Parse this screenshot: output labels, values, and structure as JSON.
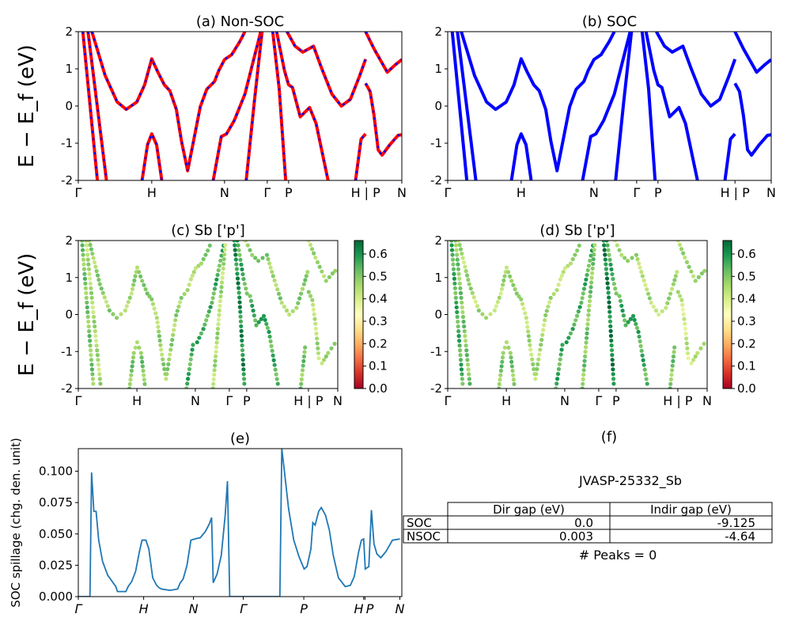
{
  "chart_data": [
    {
      "id": "a",
      "type": "line",
      "title": "(a) Non-SOC",
      "ylabel": "E − E_f (eV)",
      "ylim": [
        -2,
        2
      ],
      "yticks": [
        2,
        1,
        0,
        -1,
        -2
      ],
      "xticks": [
        {
          "label": "Γ",
          "k": 0
        },
        {
          "label": "H",
          "k": 0.227
        },
        {
          "label": "N",
          "k": 0.452
        },
        {
          "label": "Γ",
          "k": 0.584
        },
        {
          "label": "P",
          "k": 0.65
        },
        {
          "label": "H | P",
          "k": 0.888
        },
        {
          "label": "N",
          "k": 1
        }
      ],
      "colors": {
        "line": "#ff0000",
        "dash": "#0000ff"
      },
      "bands": [
        [
          [
            0.014,
            2
          ],
          [
            0.059,
            -2
          ]
        ],
        [
          [
            0.03,
            2
          ],
          [
            0.087,
            -2
          ]
        ],
        [
          [
            0.042,
            2
          ],
          [
            0.083,
            0.82
          ],
          [
            0.12,
            0.11
          ],
          [
            0.148,
            -0.09
          ],
          [
            0.181,
            0.11
          ],
          [
            0.205,
            0.57
          ],
          [
            0.227,
            1.27
          ],
          [
            0.246,
            0.91
          ],
          [
            0.266,
            0.57
          ],
          [
            0.283,
            0.41
          ],
          [
            0.303,
            -0.09
          ],
          [
            0.319,
            -0.95
          ],
          [
            0.338,
            -1.74
          ],
          [
            0.356,
            -0.95
          ],
          [
            0.377,
            -0.02
          ],
          [
            0.397,
            0.45
          ],
          [
            0.421,
            0.66
          ],
          [
            0.434,
            0.95
          ],
          [
            0.452,
            1.25
          ],
          [
            0.474,
            1.38
          ],
          [
            0.499,
            1.73
          ],
          [
            0.515,
            2
          ]
        ],
        [
          [
            0.197,
            -2
          ],
          [
            0.214,
            -1.04
          ],
          [
            0.227,
            -0.75
          ],
          [
            0.242,
            -1.04
          ],
          [
            0.258,
            -2
          ]
        ],
        [
          [
            0.417,
            -2
          ],
          [
            0.442,
            -0.82
          ],
          [
            0.458,
            -0.75
          ],
          [
            0.482,
            -0.39
          ],
          [
            0.515,
            0.32
          ],
          [
            0.544,
            1.32
          ],
          [
            0.564,
            2
          ]
        ],
        [
          [
            0.519,
            -2
          ],
          [
            0.544,
            0.11
          ],
          [
            0.568,
            2
          ]
        ],
        [
          [
            0.601,
            2
          ],
          [
            0.621,
            0.46
          ],
          [
            0.641,
            -2
          ]
        ],
        [
          [
            0.613,
            2
          ],
          [
            0.637,
            0.96
          ],
          [
            0.65,
            0.57
          ],
          [
            0.662,
            0.5
          ],
          [
            0.686,
            -0.29
          ],
          [
            0.715,
            -0.04
          ],
          [
            0.735,
            -0.47
          ],
          [
            0.772,
            -2
          ]
        ],
        [
          [
            0.645,
            2
          ],
          [
            0.67,
            1.61
          ],
          [
            0.694,
            1.45
          ],
          [
            0.727,
            1.61
          ],
          [
            0.751,
            1.04
          ],
          [
            0.784,
            0.32
          ],
          [
            0.813,
            0.0
          ],
          [
            0.841,
            0.18
          ],
          [
            0.87,
            0.82
          ],
          [
            0.888,
            1.26
          ]
        ],
        [
          [
            0.857,
            -2
          ],
          [
            0.874,
            -0.89
          ],
          [
            0.888,
            -0.75
          ]
        ],
        [
          [
            0.888,
            2
          ],
          [
            0.914,
            1.54
          ],
          [
            0.955,
            0.91
          ],
          [
            0.98,
            1.11
          ],
          [
            1,
            1.25
          ]
        ],
        [
          [
            0.888,
            0.61
          ],
          [
            0.902,
            0.39
          ],
          [
            0.914,
            -0.25
          ],
          [
            0.927,
            -1.18
          ],
          [
            0.939,
            -1.32
          ],
          [
            0.963,
            -1.04
          ],
          [
            0.988,
            -0.79
          ],
          [
            1,
            -0.77
          ]
        ]
      ]
    },
    {
      "id": "b",
      "type": "line",
      "title": "(b) SOC",
      "ylim": [
        -2,
        2
      ],
      "yticks": [
        2,
        1,
        0,
        -1,
        -2
      ],
      "xticks": [
        {
          "label": "Γ",
          "k": 0
        },
        {
          "label": "H",
          "k": 0.227
        },
        {
          "label": "N",
          "k": 0.452
        },
        {
          "label": "Γ",
          "k": 0.584
        },
        {
          "label": "P",
          "k": 0.65
        },
        {
          "label": "H | P",
          "k": 0.888
        },
        {
          "label": "N",
          "k": 1
        }
      ],
      "colors": {
        "line": "#0000ff"
      },
      "bands": [
        [
          [
            0.014,
            2
          ],
          [
            0.059,
            -2
          ]
        ],
        [
          [
            0.03,
            2
          ],
          [
            0.087,
            -2
          ]
        ],
        [
          [
            0.042,
            2
          ],
          [
            0.083,
            0.82
          ],
          [
            0.12,
            0.11
          ],
          [
            0.148,
            -0.09
          ],
          [
            0.181,
            0.11
          ],
          [
            0.205,
            0.57
          ],
          [
            0.227,
            1.27
          ],
          [
            0.246,
            0.91
          ],
          [
            0.266,
            0.57
          ],
          [
            0.283,
            0.41
          ],
          [
            0.303,
            -0.09
          ],
          [
            0.319,
            -0.95
          ],
          [
            0.338,
            -1.74
          ],
          [
            0.356,
            -0.95
          ],
          [
            0.377,
            -0.02
          ],
          [
            0.397,
            0.45
          ],
          [
            0.421,
            0.66
          ],
          [
            0.434,
            0.95
          ],
          [
            0.452,
            1.25
          ],
          [
            0.474,
            1.38
          ],
          [
            0.499,
            1.73
          ],
          [
            0.515,
            2
          ]
        ],
        [
          [
            0.197,
            -2
          ],
          [
            0.214,
            -1.04
          ],
          [
            0.227,
            -0.75
          ],
          [
            0.242,
            -1.04
          ],
          [
            0.258,
            -2
          ]
        ],
        [
          [
            0.417,
            -2
          ],
          [
            0.442,
            -0.82
          ],
          [
            0.458,
            -0.75
          ],
          [
            0.482,
            -0.39
          ],
          [
            0.515,
            0.32
          ],
          [
            0.544,
            1.32
          ],
          [
            0.564,
            2
          ]
        ],
        [
          [
            0.519,
            -2
          ],
          [
            0.544,
            0.11
          ],
          [
            0.568,
            2
          ]
        ],
        [
          [
            0.601,
            2
          ],
          [
            0.621,
            0.46
          ],
          [
            0.641,
            -2
          ]
        ],
        [
          [
            0.613,
            2
          ],
          [
            0.637,
            0.96
          ],
          [
            0.65,
            0.57
          ],
          [
            0.662,
            0.5
          ],
          [
            0.686,
            -0.29
          ],
          [
            0.715,
            -0.04
          ],
          [
            0.735,
            -0.47
          ],
          [
            0.772,
            -2
          ]
        ],
        [
          [
            0.645,
            2
          ],
          [
            0.67,
            1.61
          ],
          [
            0.694,
            1.45
          ],
          [
            0.727,
            1.61
          ],
          [
            0.751,
            1.04
          ],
          [
            0.784,
            0.32
          ],
          [
            0.813,
            0.0
          ],
          [
            0.841,
            0.18
          ],
          [
            0.87,
            0.82
          ],
          [
            0.888,
            1.26
          ]
        ],
        [
          [
            0.857,
            -2
          ],
          [
            0.874,
            -0.89
          ],
          [
            0.888,
            -0.75
          ]
        ],
        [
          [
            0.888,
            2
          ],
          [
            0.914,
            1.54
          ],
          [
            0.955,
            0.91
          ],
          [
            0.98,
            1.11
          ],
          [
            1,
            1.25
          ]
        ],
        [
          [
            0.888,
            0.61
          ],
          [
            0.902,
            0.39
          ],
          [
            0.914,
            -0.25
          ],
          [
            0.927,
            -1.18
          ],
          [
            0.939,
            -1.32
          ],
          [
            0.963,
            -1.04
          ],
          [
            0.988,
            -0.79
          ],
          [
            1,
            -0.77
          ]
        ]
      ]
    },
    {
      "id": "c",
      "type": "scatter",
      "title": "(c)  Sb ['p']",
      "ylabel": "E − E_f (eV)",
      "ylim": [
        -2,
        2
      ],
      "yticks": [
        2,
        1,
        0,
        -1,
        -2
      ],
      "xticks": [
        {
          "label": "Γ",
          "k": 0
        },
        {
          "label": "H",
          "k": 0.226
        },
        {
          "label": "N",
          "k": 0.451
        },
        {
          "label": "Γ",
          "k": 0.582
        },
        {
          "label": "P",
          "k": 0.649
        },
        {
          "label": "H | P",
          "k": 0.887
        },
        {
          "label": "N",
          "k": 1
        }
      ],
      "colorbar": {
        "colormap": "RdYlGn",
        "range": [
          0,
          0.66
        ],
        "ticks": [
          0.0,
          0.1,
          0.2,
          0.3,
          0.4,
          0.5,
          0.6
        ]
      },
      "band_weights": [
        0.5,
        0.45,
        0.47,
        0.5,
        0.55,
        0.45,
        0.6,
        0.55,
        0.48,
        0.5,
        0.45,
        0.45
      ]
    },
    {
      "id": "d",
      "type": "scatter",
      "title": "(d) Sb ['p']",
      "ylim": [
        -2,
        2
      ],
      "yticks": [
        2,
        1,
        0,
        -1,
        -2
      ],
      "xticks": [
        {
          "label": "Γ",
          "k": 0
        },
        {
          "label": "H",
          "k": 0.226
        },
        {
          "label": "N",
          "k": 0.451
        },
        {
          "label": "Γ",
          "k": 0.582
        },
        {
          "label": "P",
          "k": 0.649
        },
        {
          "label": "H | P",
          "k": 0.887
        },
        {
          "label": "N",
          "k": 1
        }
      ],
      "colorbar": {
        "colormap": "RdYlGn",
        "range": [
          0,
          0.66
        ],
        "ticks": [
          0.0,
          0.1,
          0.2,
          0.3,
          0.4,
          0.5,
          0.6
        ]
      },
      "band_weights": [
        0.55,
        0.5,
        0.45,
        0.5,
        0.55,
        0.5,
        0.62,
        0.55,
        0.45,
        0.5,
        0.45,
        0.42
      ]
    },
    {
      "id": "e",
      "type": "line",
      "title": "(e)",
      "ylabel": "SOC spillage (chg. den. unit)",
      "ylim": [
        0,
        0.118
      ],
      "yticks": [
        0.0,
        0.025,
        0.05,
        0.075,
        0.1
      ],
      "ytick_labels": [
        "0.000",
        "0.025",
        "0.050",
        "0.075",
        "0.100"
      ],
      "xticks": [
        {
          "label": "Γ",
          "k": 0
        },
        {
          "label": "H",
          "k": 0.202
        },
        {
          "label": "N",
          "k": 0.356
        },
        {
          "label": "Γ",
          "k": 0.51
        },
        {
          "label": "P",
          "k": 0.697
        },
        {
          "label": "H",
          "k": 0.882
        },
        {
          "label": "P",
          "k": 0.886
        },
        {
          "label": "N",
          "k": 0.994
        }
      ],
      "colors": {
        "line": "#1f77b4"
      },
      "x": [
        0,
        0.036,
        0.041,
        0.048,
        0.055,
        0.063,
        0.075,
        0.091,
        0.116,
        0.121,
        0.147,
        0.154,
        0.165,
        0.177,
        0.189,
        0.197,
        0.209,
        0.218,
        0.23,
        0.242,
        0.25,
        0.258,
        0.283,
        0.307,
        0.315,
        0.324,
        0.336,
        0.348,
        0.36,
        0.377,
        0.393,
        0.405,
        0.412,
        0.417,
        0.429,
        0.442,
        0.454,
        0.461,
        0.468,
        0.623,
        0.629,
        0.637,
        0.65,
        0.666,
        0.682,
        0.698,
        0.707,
        0.719,
        0.725,
        0.732,
        0.743,
        0.751,
        0.764,
        0.776,
        0.788,
        0.804,
        0.825,
        0.841,
        0.853,
        0.866,
        0.875,
        0.882,
        0.887,
        0.898,
        0.906,
        0.914,
        0.923,
        0.935,
        0.951,
        0.971,
        0.994
      ],
      "y": [
        0,
        0,
        0.099,
        0.068,
        0.068,
        0.045,
        0.028,
        0.017,
        0.008,
        0.004,
        0.004,
        0.008,
        0.012,
        0.02,
        0.036,
        0.045,
        0.045,
        0.038,
        0.015,
        0.009,
        0.007,
        0.006,
        0.005,
        0.006,
        0.011,
        0.014,
        0.025,
        0.045,
        0.046,
        0.047,
        0.052,
        0.058,
        0.063,
        0.011,
        0.018,
        0.033,
        0.065,
        0.092,
        0,
        0,
        0.118,
        0.1,
        0.07,
        0.045,
        0.032,
        0.022,
        0.024,
        0.038,
        0.059,
        0.057,
        0.068,
        0.071,
        0.065,
        0.053,
        0.033,
        0.015,
        0.008,
        0.009,
        0.016,
        0.035,
        0.045,
        0.046,
        0.022,
        0.024,
        0.069,
        0.042,
        0.034,
        0.031,
        0.036,
        0.045,
        0.046
      ]
    },
    {
      "id": "f",
      "type": "table",
      "title": "(f)",
      "subtitle": "JVASP-25332_Sb",
      "columns": [
        "",
        "Dir gap (eV)",
        "Indir gap (eV)"
      ],
      "rows": [
        [
          "SOC",
          "0.0",
          "-9.125"
        ],
        [
          "NSOC",
          "0.003",
          "-4.64"
        ]
      ],
      "footer": "# Peaks = 0"
    }
  ]
}
